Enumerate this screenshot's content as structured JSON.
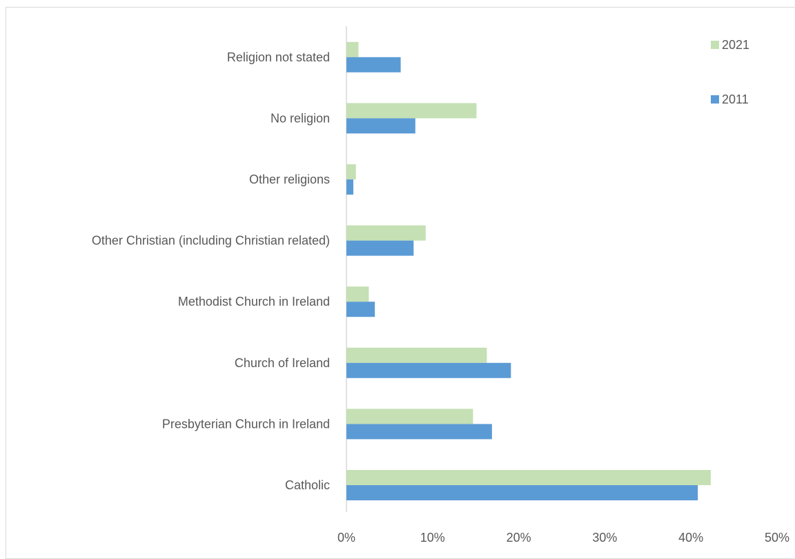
{
  "chart_data": {
    "type": "bar",
    "orientation": "horizontal",
    "categories": [
      "Catholic",
      "Presbyterian Church in Ireland",
      "Church of Ireland",
      "Methodist Church in Ireland",
      "Other Christian (including Christian related)",
      "Other religions",
      "No religion",
      "Religion not stated"
    ],
    "series": [
      {
        "name": "2021",
        "color": "#c5e0b4",
        "values": [
          42.3,
          14.7,
          16.3,
          2.6,
          9.2,
          1.1,
          15.1,
          1.4
        ]
      },
      {
        "name": "2011",
        "color": "#5b9bd5",
        "values": [
          40.8,
          16.9,
          19.1,
          3.3,
          7.8,
          0.8,
          8.0,
          6.3
        ]
      }
    ],
    "x_ticks": [
      "0%",
      "10%",
      "20%",
      "30%",
      "40%",
      "50%"
    ],
    "xlim": [
      0,
      50
    ],
    "axis_unit": "%",
    "legend_position": "top-right",
    "gridlines": false
  }
}
